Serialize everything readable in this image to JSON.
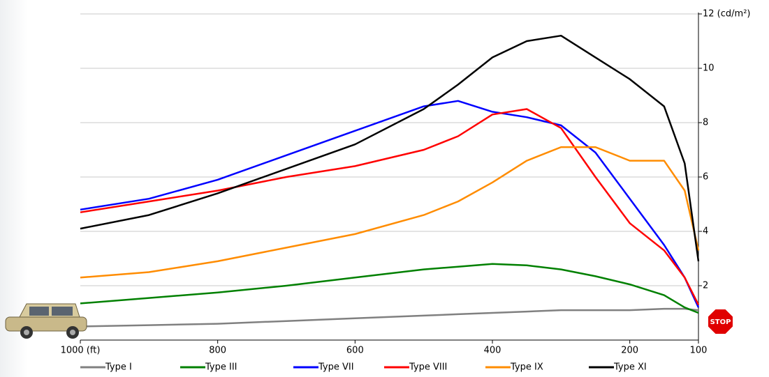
{
  "chart_data": {
    "type": "line",
    "x": [
      1000,
      900,
      800,
      700,
      600,
      500,
      450,
      400,
      350,
      300,
      250,
      200,
      150,
      120,
      100
    ],
    "series": [
      {
        "name": "Type I",
        "color": "#808080",
        "values": [
          0.5,
          0.55,
          0.6,
          0.7,
          0.8,
          0.9,
          0.95,
          1.0,
          1.05,
          1.1,
          1.1,
          1.1,
          1.15,
          1.15,
          1.1
        ]
      },
      {
        "name": "Type III",
        "color": "#008000",
        "values": [
          1.35,
          1.55,
          1.75,
          2.0,
          2.3,
          2.6,
          2.7,
          2.8,
          2.75,
          2.6,
          2.35,
          2.05,
          1.65,
          1.2,
          1.0
        ]
      },
      {
        "name": "Type VII",
        "color": "#0000ff",
        "values": [
          4.8,
          5.2,
          5.9,
          6.8,
          7.7,
          8.6,
          8.8,
          8.4,
          8.2,
          7.9,
          6.9,
          5.2,
          3.5,
          2.3,
          1.2
        ]
      },
      {
        "name": "Type VIII",
        "color": "#ff0000",
        "values": [
          4.7,
          5.1,
          5.5,
          6.0,
          6.4,
          7.0,
          7.5,
          8.3,
          8.5,
          7.8,
          6.0,
          4.3,
          3.3,
          2.3,
          1.3
        ]
      },
      {
        "name": "Type IX",
        "color": "#ff8c00",
        "values": [
          2.3,
          2.5,
          2.9,
          3.4,
          3.9,
          4.6,
          5.1,
          5.8,
          6.6,
          7.1,
          7.1,
          6.6,
          6.6,
          5.5,
          3.3
        ]
      },
      {
        "name": "Type XI",
        "color": "#000000",
        "values": [
          4.1,
          4.6,
          5.4,
          6.3,
          7.2,
          8.5,
          9.4,
          10.4,
          11.0,
          11.2,
          10.4,
          9.6,
          8.6,
          6.5,
          2.9
        ]
      }
    ],
    "xlim": [
      1000,
      100
    ],
    "xticks": [
      {
        "value": 1000,
        "label": "1000 (ft)"
      },
      800,
      600,
      400,
      200,
      100
    ],
    "ylim": [
      0,
      12
    ],
    "yticks": [
      2,
      4,
      6,
      8,
      10,
      {
        "value": 12,
        "label": "12 (cd/m²)"
      }
    ],
    "grid": true
  }
}
